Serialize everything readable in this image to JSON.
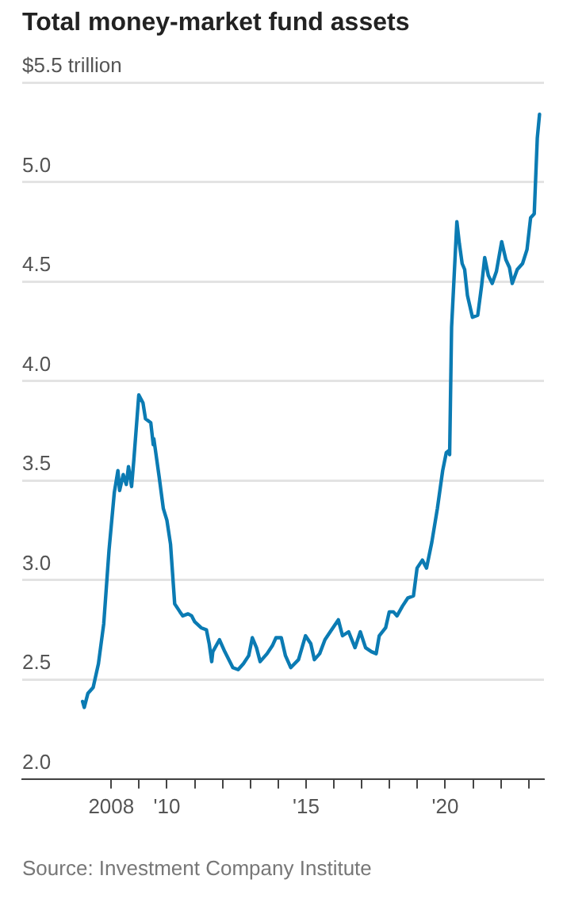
{
  "chart_data": {
    "type": "line",
    "title": "Total money-market fund assets",
    "annotations": [
      "Source: Investment Company Institute"
    ],
    "xlim": [
      2004.8,
      2023.55
    ],
    "xticks": [
      {
        "value": 2008,
        "label": "2008"
      },
      {
        "value": 2009,
        "label": null
      },
      {
        "value": 2010,
        "label": "'10"
      },
      {
        "value": 2011,
        "label": null
      },
      {
        "value": 2012,
        "label": null
      },
      {
        "value": 2013,
        "label": null
      },
      {
        "value": 2014,
        "label": null
      },
      {
        "value": 2015,
        "label": "'15"
      },
      {
        "value": 2016,
        "label": null
      },
      {
        "value": 2017,
        "label": null
      },
      {
        "value": 2018,
        "label": null
      },
      {
        "value": 2019,
        "label": null
      },
      {
        "value": 2020,
        "label": "'20"
      },
      {
        "value": 2021,
        "label": null
      },
      {
        "value": 2022,
        "label": null
      },
      {
        "value": 2023,
        "label": null
      }
    ],
    "ylim": [
      2.0,
      5.5
    ],
    "yticks": [
      {
        "value": 2,
        "label": "2.0"
      },
      2.5,
      {
        "value": 3,
        "label": "3.0"
      },
      3.5,
      {
        "value": 4,
        "label": "4.0"
      },
      4.5,
      {
        "value": 5,
        "label": "5.0"
      },
      {
        "value": 5.5,
        "label": "$5.5 trillion"
      }
    ],
    "grid": "y",
    "legend": false,
    "marker": "none",
    "line_style": "solid",
    "series": [
      {
        "color": "#0b7bb3",
        "x": [
          2006.97,
          2007.03,
          2007.16,
          2007.35,
          2007.54,
          2007.73,
          2007.92,
          2008.11,
          2008.24,
          2008.3,
          2008.43,
          2008.54,
          2008.62,
          2008.73,
          2008.81,
          2008.99,
          2009.14,
          2009.23,
          2009.42,
          2009.51,
          2009.53,
          2009.72,
          2009.87,
          2010.0,
          2010.13,
          2010.28,
          2010.47,
          2010.57,
          2010.76,
          2010.89,
          2011.0,
          2011.23,
          2011.42,
          2011.52,
          2011.61,
          2011.65,
          2011.89,
          2012.08,
          2012.37,
          2012.56,
          2012.75,
          2012.94,
          2013.07,
          2013.22,
          2013.35,
          2013.6,
          2013.79,
          2013.92,
          2014.11,
          2014.26,
          2014.45,
          2014.73,
          2014.98,
          2015.17,
          2015.3,
          2015.49,
          2015.68,
          2015.87,
          2016.16,
          2016.31,
          2016.53,
          2016.76,
          2016.95,
          2017.14,
          2017.35,
          2017.52,
          2017.63,
          2017.86,
          2017.99,
          2018.14,
          2018.27,
          2018.47,
          2018.66,
          2018.86,
          2018.99,
          2019.18,
          2019.33,
          2019.52,
          2019.72,
          2019.91,
          2020.04,
          2020.13,
          2020.16,
          2020.23,
          2020.42,
          2020.51,
          2020.61,
          2020.7,
          2020.8,
          2020.98,
          2021.17,
          2021.31,
          2021.42,
          2021.55,
          2021.69,
          2021.84,
          2022.03,
          2022.18,
          2022.31,
          2022.41,
          2022.59,
          2022.78,
          2022.94,
          2023.07,
          2023.2,
          2023.31,
          2023.39
        ],
        "values": [
          2.39,
          2.36,
          2.43,
          2.46,
          2.58,
          2.78,
          3.15,
          3.44,
          3.55,
          3.45,
          3.53,
          3.48,
          3.57,
          3.47,
          3.6,
          3.93,
          3.89,
          3.81,
          3.79,
          3.68,
          3.71,
          3.52,
          3.36,
          3.3,
          3.18,
          2.88,
          2.84,
          2.82,
          2.83,
          2.82,
          2.79,
          2.76,
          2.75,
          2.68,
          2.59,
          2.64,
          2.7,
          2.64,
          2.56,
          2.55,
          2.58,
          2.62,
          2.71,
          2.66,
          2.59,
          2.63,
          2.67,
          2.71,
          2.71,
          2.62,
          2.56,
          2.6,
          2.72,
          2.68,
          2.6,
          2.63,
          2.7,
          2.74,
          2.8,
          2.72,
          2.74,
          2.66,
          2.74,
          2.66,
          2.64,
          2.63,
          2.72,
          2.76,
          2.84,
          2.84,
          2.82,
          2.87,
          2.91,
          2.92,
          3.06,
          3.1,
          3.06,
          3.19,
          3.36,
          3.55,
          3.64,
          3.65,
          3.63,
          4.27,
          4.8,
          4.69,
          4.59,
          4.56,
          4.43,
          4.32,
          4.33,
          4.48,
          4.62,
          4.53,
          4.49,
          4.55,
          4.7,
          4.61,
          4.57,
          4.49,
          4.56,
          4.59,
          4.66,
          4.82,
          4.84,
          5.22,
          5.34
        ]
      }
    ]
  }
}
